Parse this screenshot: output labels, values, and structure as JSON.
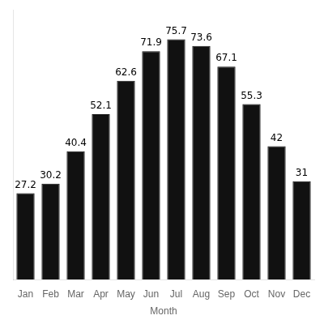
{
  "chart_data": {
    "type": "bar",
    "xlabel": "Month",
    "categories": [
      "Jan",
      "Feb",
      "Mar",
      "Apr",
      "May",
      "Jun",
      "Jul",
      "Aug",
      "Sep",
      "Oct",
      "Nov",
      "Dec"
    ],
    "values": [
      27.2,
      30.2,
      40.4,
      52.1,
      62.6,
      71.9,
      75.7,
      73.6,
      67.1,
      55.3,
      42.0,
      31.0
    ],
    "color": "#111111",
    "ylim": [
      0,
      85
    ],
    "data_labels": true,
    "tick_labels": "x",
    "grid": false
  }
}
